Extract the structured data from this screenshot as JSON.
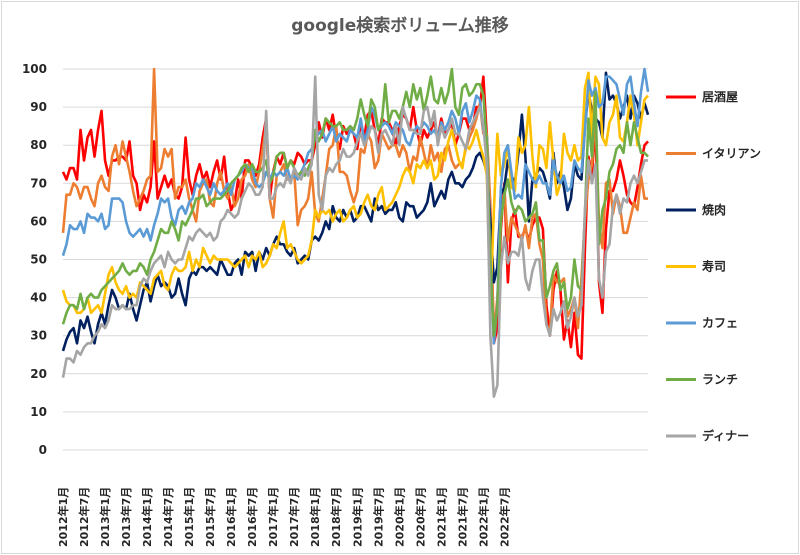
{
  "chart_data": {
    "type": "line",
    "title": "google検索ボリューム推移",
    "xlabel": "",
    "ylabel": "",
    "ylim": [
      0,
      100
    ],
    "yticks": [
      0,
      10,
      20,
      30,
      40,
      50,
      60,
      70,
      80,
      90,
      100
    ],
    "x_tick_labels": [
      "2012年1月",
      "2012年7月",
      "2013年1月",
      "2013年7月",
      "2014年1月",
      "2014年7月",
      "2015年1月",
      "2015年7月",
      "2016年1月",
      "2016年7月",
      "2017年1月",
      "2017年7月",
      "2018年1月",
      "2018年7月",
      "2019年1月",
      "2019年7月",
      "2020年1月",
      "2020年7月",
      "2021年1月",
      "2021年7月",
      "2022年1月",
      "2022年7月"
    ],
    "x_start": "2012-01",
    "grid": true,
    "legend_position": "right",
    "series": [
      {
        "name": "居酒屋",
        "color": "#ff0000",
        "values": [
          73,
          71,
          74,
          74,
          71,
          84,
          76,
          82,
          84,
          77,
          84,
          89,
          76,
          72,
          76,
          76,
          77,
          77,
          76,
          81,
          72,
          70,
          63,
          67,
          65,
          69,
          81,
          66,
          69,
          72,
          69,
          71,
          67,
          66,
          69,
          82,
          71,
          67,
          72,
          75,
          71,
          73,
          69,
          73,
          76,
          71,
          77,
          68,
          63,
          65,
          71,
          66,
          76,
          76,
          74,
          72,
          75,
          82,
          87,
          66,
          73,
          77,
          75,
          78,
          74,
          76,
          75,
          78,
          77,
          75,
          76,
          76,
          80,
          86,
          82,
          87,
          84,
          88,
          82,
          79,
          85,
          83,
          84,
          83,
          79,
          86,
          82,
          88,
          89,
          84,
          80,
          87,
          86,
          86,
          84,
          80,
          85,
          88,
          87,
          84,
          90,
          84,
          80,
          84,
          82,
          84,
          86,
          82,
          87,
          83,
          84,
          86,
          80,
          83,
          87,
          87,
          84,
          85,
          90,
          90,
          98,
          82,
          63,
          28,
          32,
          58,
          70,
          44,
          60,
          63,
          56,
          56,
          58,
          55,
          59,
          61,
          61,
          58,
          38,
          30,
          42,
          47,
          42,
          29,
          34,
          27,
          36,
          25,
          24,
          53,
          77,
          72,
          87,
          44,
          36,
          58,
          68,
          68,
          71,
          76,
          72,
          67,
          65,
          64,
          69,
          75,
          80,
          81
        ]
      },
      {
        "name": "イタリアン",
        "color": "#ed7d31",
        "values": [
          57,
          67,
          67,
          70,
          69,
          66,
          69,
          69,
          66,
          64,
          70,
          72,
          69,
          68,
          77,
          80,
          75,
          81,
          77,
          73,
          68,
          64,
          66,
          68,
          71,
          72,
          100,
          73,
          74,
          79,
          77,
          79,
          66,
          69,
          69,
          71,
          66,
          63,
          60,
          68,
          70,
          71,
          65,
          64,
          70,
          73,
          68,
          66,
          69,
          64,
          66,
          71,
          72,
          75,
          71,
          69,
          73,
          79,
          85,
          66,
          61,
          72,
          73,
          75,
          71,
          71,
          73,
          59,
          63,
          64,
          66,
          73,
          62,
          60,
          66,
          72,
          79,
          80,
          85,
          73,
          73,
          72,
          68,
          65,
          68,
          79,
          78,
          83,
          81,
          74,
          76,
          83,
          81,
          79,
          80,
          80,
          77,
          80,
          78,
          73,
          77,
          76,
          82,
          78,
          74,
          80,
          76,
          78,
          73,
          79,
          80,
          76,
          74,
          75,
          75,
          79,
          82,
          84,
          87,
          91,
          83,
          83,
          64,
          30,
          40,
          61,
          68,
          55,
          61,
          59,
          57,
          55,
          59,
          53,
          61,
          62,
          54,
          50,
          33,
          31,
          46,
          44,
          44,
          45,
          35,
          37,
          40,
          32,
          45,
          61,
          71,
          75,
          88,
          60,
          53,
          70,
          71,
          62,
          67,
          64,
          57,
          57,
          61,
          65,
          63,
          72,
          66,
          66
        ]
      },
      {
        "name": "焼肉",
        "color": "#002060",
        "values": [
          26,
          29,
          31,
          32,
          28,
          34,
          32,
          35,
          31,
          28,
          33,
          36,
          33,
          38,
          42,
          40,
          37,
          38,
          37,
          41,
          37,
          34,
          38,
          42,
          44,
          39,
          43,
          46,
          43,
          44,
          43,
          40,
          41,
          45,
          41,
          38,
          45,
          47,
          46,
          48,
          48,
          47,
          48,
          47,
          46,
          50,
          48,
          46,
          46,
          49,
          50,
          46,
          52,
          51,
          52,
          47,
          52,
          50,
          53,
          51,
          54,
          56,
          54,
          54,
          52,
          51,
          53,
          49,
          50,
          51,
          50,
          55,
          56,
          55,
          57,
          60,
          58,
          64,
          61,
          60,
          63,
          61,
          63,
          60,
          61,
          64,
          64,
          62,
          60,
          66,
          63,
          64,
          62,
          63,
          63,
          65,
          61,
          60,
          65,
          64,
          64,
          61,
          62,
          63,
          65,
          70,
          64,
          66,
          68,
          66,
          71,
          73,
          70,
          70,
          69,
          71,
          72,
          74,
          77,
          78,
          76,
          73,
          60,
          44,
          48,
          67,
          69,
          76,
          72,
          70,
          78,
          88,
          77,
          60,
          71,
          72,
          74,
          73,
          70,
          66,
          78,
          70,
          73,
          69,
          63,
          66,
          75,
          72,
          71,
          85,
          94,
          89,
          87,
          86,
          82,
          99,
          92,
          93,
          91,
          87,
          90,
          93,
          87,
          93,
          91,
          87,
          91,
          88
        ]
      },
      {
        "name": "寿司",
        "color": "#ffc000",
        "values": [
          42,
          39,
          38,
          38,
          36,
          36,
          37,
          40,
          36,
          37,
          38,
          36,
          41,
          46,
          48,
          44,
          42,
          41,
          43,
          40,
          41,
          40,
          44,
          43,
          42,
          41,
          45,
          46,
          47,
          43,
          42,
          46,
          48,
          47,
          47,
          48,
          52,
          47,
          50,
          48,
          53,
          51,
          49,
          51,
          50,
          50,
          50,
          50,
          49,
          48,
          49,
          50,
          51,
          48,
          51,
          50,
          52,
          48,
          49,
          51,
          54,
          53,
          57,
          60,
          53,
          54,
          52,
          50,
          49,
          50,
          51,
          55,
          63,
          61,
          63,
          62,
          63,
          60,
          62,
          63,
          60,
          61,
          63,
          64,
          61,
          62,
          65,
          67,
          64,
          63,
          67,
          69,
          63,
          64,
          65,
          67,
          69,
          72,
          74,
          73,
          70,
          75,
          74,
          76,
          74,
          76,
          71,
          72,
          78,
          76,
          81,
          84,
          80,
          76,
          74,
          80,
          79,
          81,
          84,
          80,
          77,
          72,
          38,
          63,
          83,
          72,
          75,
          80,
          69,
          68,
          82,
          78,
          80,
          90,
          77,
          69,
          80,
          79,
          74,
          86,
          76,
          67,
          70,
          83,
          78,
          76,
          80,
          76,
          77,
          95,
          99,
          82,
          98,
          96,
          82,
          80,
          86,
          88,
          93,
          82,
          81,
          86,
          93,
          88,
          80,
          86,
          92,
          93
        ]
      },
      {
        "name": "カフェ",
        "color": "#5b9bd5",
        "values": [
          51,
          54,
          59,
          58,
          58,
          60,
          57,
          62,
          61,
          61,
          60,
          62,
          58,
          59,
          66,
          66,
          66,
          65,
          60,
          57,
          56,
          57,
          58,
          56,
          58,
          55,
          59,
          62,
          66,
          65,
          66,
          61,
          59,
          63,
          64,
          62,
          65,
          66,
          70,
          69,
          71,
          69,
          67,
          70,
          68,
          67,
          68,
          70,
          67,
          71,
          72,
          73,
          75,
          74,
          74,
          70,
          69,
          70,
          73,
          71,
          73,
          72,
          73,
          72,
          74,
          71,
          72,
          71,
          73,
          75,
          78,
          79,
          82,
          83,
          84,
          81,
          83,
          85,
          81,
          83,
          82,
          81,
          84,
          83,
          82,
          87,
          81,
          84,
          90,
          88,
          84,
          85,
          86,
          85,
          83,
          86,
          85,
          84,
          81,
          80,
          83,
          85,
          84,
          86,
          85,
          83,
          84,
          82,
          86,
          84,
          86,
          89,
          87,
          83,
          89,
          91,
          86,
          89,
          93,
          92,
          84,
          82,
          50,
          28,
          38,
          69,
          78,
          80,
          73,
          66,
          67,
          66,
          75,
          73,
          71,
          70,
          72,
          70,
          70,
          67,
          76,
          72,
          70,
          72,
          68,
          69,
          76,
          74,
          73,
          84,
          97,
          93,
          95,
          90,
          91,
          98,
          98,
          97,
          96,
          92,
          88,
          96,
          98,
          91,
          85,
          94,
          100,
          94
        ]
      },
      {
        "name": "ランチ",
        "color": "#70ad47",
        "values": [
          33,
          36,
          38,
          38,
          37,
          41,
          37,
          40,
          41,
          40,
          40,
          42,
          43,
          44,
          45,
          46,
          47,
          49,
          47,
          46,
          47,
          47,
          49,
          48,
          46,
          50,
          52,
          55,
          58,
          57,
          57,
          60,
          58,
          55,
          60,
          59,
          61,
          63,
          66,
          66,
          67,
          64,
          65,
          66,
          66,
          66,
          67,
          68,
          70,
          71,
          72,
          74,
          75,
          73,
          75,
          73,
          73,
          74,
          76,
          70,
          72,
          77,
          78,
          78,
          74,
          76,
          74,
          72,
          73,
          72,
          74,
          76,
          84,
          81,
          83,
          87,
          86,
          85,
          85,
          86,
          84,
          84,
          85,
          84,
          87,
          92,
          88,
          85,
          92,
          90,
          84,
          86,
          96,
          86,
          89,
          89,
          87,
          90,
          94,
          90,
          96,
          92,
          95,
          89,
          93,
          98,
          92,
          91,
          95,
          91,
          94,
          100,
          90,
          88,
          95,
          96,
          93,
          94,
          96,
          96,
          93,
          80,
          48,
          30,
          37,
          60,
          67,
          71,
          65,
          62,
          64,
          63,
          60,
          61,
          62,
          65,
          55,
          55,
          40,
          43,
          47,
          49,
          42,
          44,
          37,
          40,
          50,
          43,
          42,
          62,
          87,
          77,
          94,
          54,
          63,
          66,
          73,
          75,
          79,
          80,
          78,
          86,
          80,
          86,
          82,
          78,
          78,
          77
        ]
      },
      {
        "name": "ディナー",
        "color": "#a5a5a5",
        "values": [
          19,
          24,
          24,
          23,
          26,
          25,
          27,
          28,
          28,
          30,
          31,
          33,
          32,
          34,
          38,
          37,
          37,
          38,
          37,
          37,
          38,
          38,
          43,
          45,
          44,
          47,
          49,
          50,
          51,
          48,
          52,
          50,
          49,
          50,
          50,
          53,
          56,
          55,
          57,
          58,
          57,
          56,
          57,
          55,
          56,
          60,
          61,
          63,
          62,
          61,
          62,
          66,
          68,
          70,
          69,
          67,
          67,
          69,
          89,
          66,
          66,
          69,
          70,
          69,
          72,
          70,
          74,
          72,
          71,
          74,
          72,
          75,
          98,
          67,
          63,
          72,
          74,
          73,
          75,
          76,
          79,
          77,
          77,
          78,
          81,
          83,
          80,
          82,
          85,
          84,
          78,
          83,
          84,
          82,
          80,
          85,
          80,
          90,
          87,
          84,
          84,
          83,
          83,
          89,
          90,
          85,
          89,
          80,
          85,
          82,
          84,
          87,
          83,
          83,
          81,
          79,
          84,
          86,
          88,
          90,
          85,
          75,
          30,
          14,
          17,
          48,
          56,
          49,
          52,
          52,
          51,
          56,
          45,
          42,
          47,
          50,
          50,
          40,
          33,
          30,
          37,
          34,
          36,
          39,
          32,
          35,
          40,
          35,
          38,
          63,
          76,
          70,
          75,
          45,
          40,
          52,
          54,
          64,
          67,
          62,
          66,
          65,
          70,
          72,
          70,
          73,
          76,
          76
        ]
      }
    ]
  }
}
